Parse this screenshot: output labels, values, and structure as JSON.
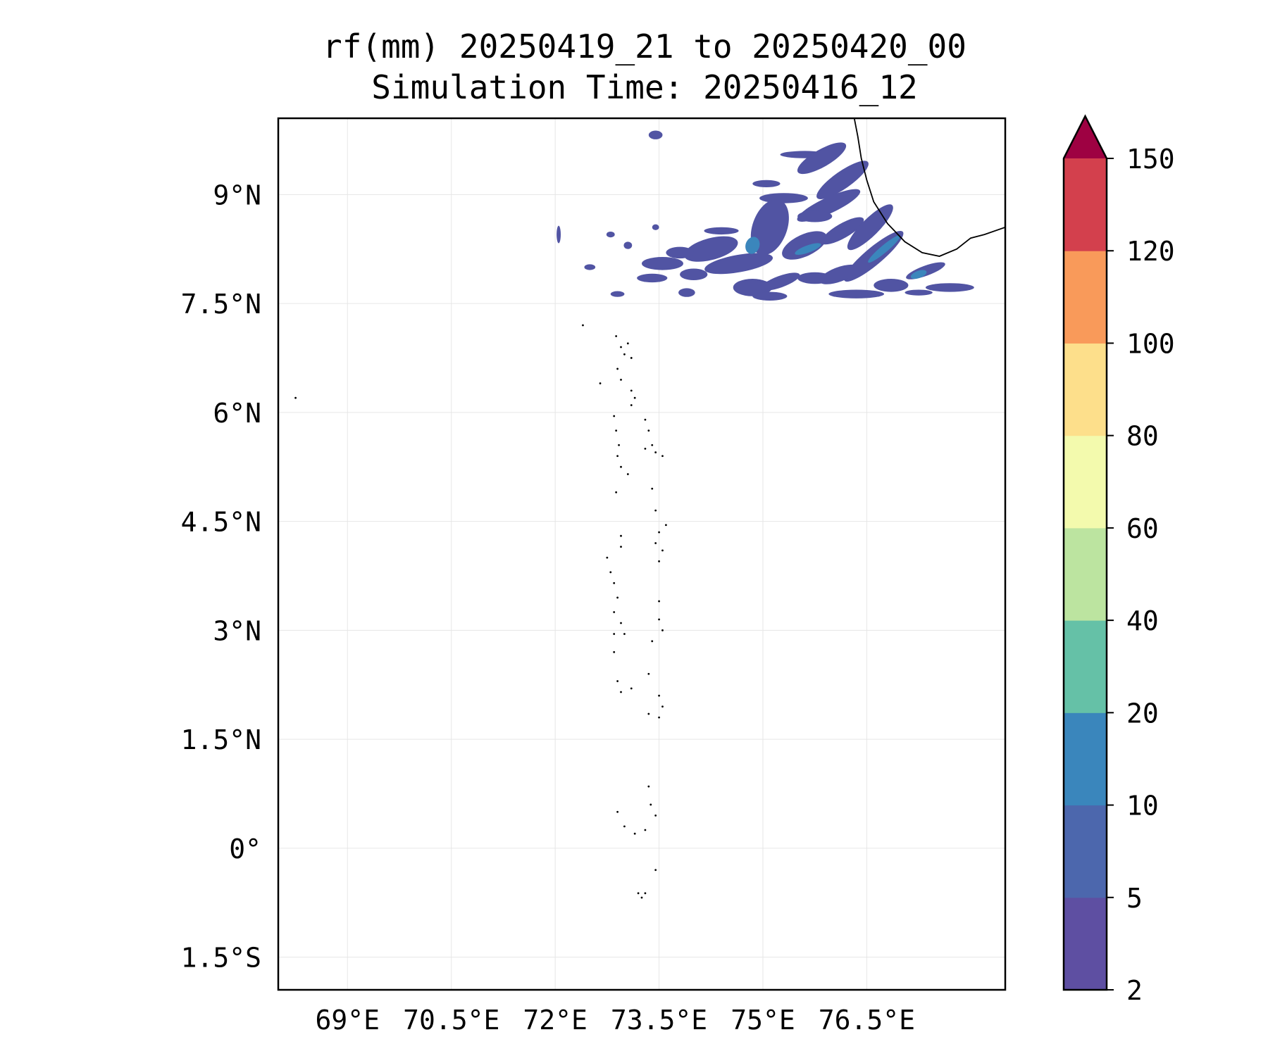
{
  "figure": {
    "title_line1": "rf(mm) 20250419_21 to 20250420_00",
    "title_line2": "Simulation Time: 20250416_12"
  },
  "map": {
    "lon_range": [
      68.0,
      78.5
    ],
    "lat_range": [
      -1.95,
      10.05
    ],
    "lon_ticks": [
      {
        "value": 69.0,
        "label": "69°E"
      },
      {
        "value": 70.5,
        "label": "70.5°E"
      },
      {
        "value": 72.0,
        "label": "72°E"
      },
      {
        "value": 73.5,
        "label": "73.5°E"
      },
      {
        "value": 75.0,
        "label": "75°E"
      },
      {
        "value": 76.5,
        "label": "76.5°E"
      }
    ],
    "lat_ticks": [
      {
        "value": 9.0,
        "label": "9°N"
      },
      {
        "value": 7.5,
        "label": "7.5°N"
      },
      {
        "value": 6.0,
        "label": "6°N"
      },
      {
        "value": 4.5,
        "label": "4.5°N"
      },
      {
        "value": 3.0,
        "label": "3°N"
      },
      {
        "value": 1.5,
        "label": "1.5°N"
      },
      {
        "value": 0.0,
        "label": "0°"
      },
      {
        "value": -1.5,
        "label": "1.5°S"
      }
    ],
    "gridlines": true,
    "coastline": [
      [
        76.32,
        10.05
      ],
      [
        76.37,
        9.8
      ],
      [
        76.42,
        9.5
      ],
      [
        76.5,
        9.2
      ],
      [
        76.6,
        8.9
      ],
      [
        76.8,
        8.6
      ],
      [
        77.05,
        8.35
      ],
      [
        77.3,
        8.2
      ],
      [
        77.55,
        8.15
      ],
      [
        77.8,
        8.25
      ],
      [
        78.0,
        8.4
      ],
      [
        78.2,
        8.45
      ],
      [
        78.5,
        8.55
      ]
    ],
    "islands": [
      [
        72.88,
        7.05
      ],
      [
        72.95,
        6.9
      ],
      [
        73.05,
        6.95
      ],
      [
        73.1,
        6.75
      ],
      [
        73.0,
        6.8
      ],
      [
        72.9,
        6.6
      ],
      [
        72.95,
        6.45
      ],
      [
        73.1,
        6.3
      ],
      [
        73.15,
        6.2
      ],
      [
        73.1,
        6.1
      ],
      [
        72.85,
        5.95
      ],
      [
        72.88,
        5.75
      ],
      [
        72.92,
        5.55
      ],
      [
        72.9,
        5.4
      ],
      [
        72.95,
        5.25
      ],
      [
        73.05,
        5.15
      ],
      [
        73.3,
        5.9
      ],
      [
        73.35,
        5.75
      ],
      [
        73.3,
        5.5
      ],
      [
        73.45,
        5.45
      ],
      [
        73.55,
        5.4
      ],
      [
        73.4,
        5.55
      ],
      [
        72.88,
        4.9
      ],
      [
        73.4,
        4.95
      ],
      [
        73.45,
        4.65
      ],
      [
        73.6,
        4.45
      ],
      [
        73.5,
        4.35
      ],
      [
        73.45,
        4.2
      ],
      [
        73.55,
        4.1
      ],
      [
        73.5,
        3.95
      ],
      [
        72.95,
        4.3
      ],
      [
        72.95,
        4.15
      ],
      [
        72.75,
        4.0
      ],
      [
        72.8,
        3.8
      ],
      [
        72.85,
        3.65
      ],
      [
        72.9,
        3.45
      ],
      [
        72.85,
        3.25
      ],
      [
        72.95,
        3.1
      ],
      [
        72.85,
        2.95
      ],
      [
        72.85,
        2.7
      ],
      [
        73.0,
        2.95
      ],
      [
        73.5,
        3.4
      ],
      [
        73.5,
        3.15
      ],
      [
        73.55,
        3.0
      ],
      [
        73.4,
        2.85
      ],
      [
        73.35,
        2.4
      ],
      [
        72.9,
        2.3
      ],
      [
        72.95,
        2.15
      ],
      [
        73.1,
        2.2
      ],
      [
        73.35,
        1.85
      ],
      [
        73.5,
        1.8
      ],
      [
        73.55,
        1.95
      ],
      [
        73.5,
        2.1
      ],
      [
        73.35,
        0.85
      ],
      [
        73.38,
        0.6
      ],
      [
        73.45,
        0.45
      ],
      [
        72.9,
        0.5
      ],
      [
        73.0,
        0.3
      ],
      [
        73.15,
        0.2
      ],
      [
        73.3,
        0.25
      ],
      [
        73.45,
        -0.3
      ],
      [
        73.2,
        -0.62
      ],
      [
        73.25,
        -0.68
      ],
      [
        73.3,
        -0.62
      ],
      [
        72.4,
        7.2
      ],
      [
        72.65,
        6.4
      ],
      [
        68.25,
        6.2
      ]
    ],
    "rain_patches_5_10": [
      [
        73.45,
        9.82,
        0.1,
        0.06,
        0
      ],
      [
        75.6,
        9.55,
        0.35,
        0.05,
        0
      ],
      [
        75.05,
        9.15,
        0.2,
        0.05,
        0
      ],
      [
        75.85,
        9.5,
        0.4,
        0.12,
        -30
      ],
      [
        76.15,
        9.2,
        0.45,
        0.12,
        -35
      ],
      [
        75.95,
        8.85,
        0.5,
        0.11,
        -25
      ],
      [
        75.3,
        8.95,
        0.35,
        0.07,
        0
      ],
      [
        75.1,
        8.55,
        0.25,
        0.4,
        20
      ],
      [
        75.75,
        8.7,
        0.25,
        0.08,
        0
      ],
      [
        76.15,
        8.5,
        0.35,
        0.1,
        -30
      ],
      [
        76.55,
        8.55,
        0.45,
        0.12,
        -45
      ],
      [
        76.6,
        8.15,
        0.55,
        0.12,
        -40
      ],
      [
        75.6,
        8.3,
        0.35,
        0.15,
        -25
      ],
      [
        74.4,
        8.5,
        0.25,
        0.05,
        0
      ],
      [
        74.25,
        8.25,
        0.4,
        0.15,
        -15
      ],
      [
        74.65,
        8.05,
        0.5,
        0.12,
        -10
      ],
      [
        73.8,
        8.2,
        0.2,
        0.08,
        0
      ],
      [
        73.55,
        8.05,
        0.3,
        0.09,
        0
      ],
      [
        73.4,
        7.85,
        0.22,
        0.06,
        0
      ],
      [
        74.0,
        7.9,
        0.2,
        0.08,
        0
      ],
      [
        73.9,
        7.65,
        0.12,
        0.06,
        0
      ],
      [
        74.85,
        7.72,
        0.28,
        0.12,
        0
      ],
      [
        75.1,
        7.6,
        0.25,
        0.06,
        0
      ],
      [
        75.25,
        7.8,
        0.3,
        0.08,
        -20
      ],
      [
        75.75,
        7.85,
        0.25,
        0.08,
        0
      ],
      [
        76.1,
        7.9,
        0.3,
        0.1,
        -20
      ],
      [
        76.35,
        7.63,
        0.4,
        0.06,
        0
      ],
      [
        76.85,
        7.75,
        0.25,
        0.09,
        0
      ],
      [
        77.35,
        7.95,
        0.3,
        0.07,
        -20
      ],
      [
        77.7,
        7.72,
        0.35,
        0.06,
        0
      ],
      [
        77.25,
        7.65,
        0.2,
        0.04,
        0
      ],
      [
        72.9,
        7.63,
        0.1,
        0.04,
        0
      ],
      [
        72.5,
        8.0,
        0.08,
        0.04,
        0
      ],
      [
        72.05,
        8.45,
        0.03,
        0.12,
        0
      ],
      [
        72.8,
        8.45,
        0.06,
        0.04,
        0
      ],
      [
        73.45,
        8.55,
        0.05,
        0.04,
        0
      ],
      [
        73.05,
        8.3,
        0.06,
        0.05,
        0
      ]
    ],
    "rain_patches_10_20": [
      [
        76.75,
        8.25,
        0.3,
        0.05,
        -40
      ],
      [
        75.65,
        8.25,
        0.2,
        0.05,
        -20
      ],
      [
        74.85,
        8.3,
        0.1,
        0.12,
        20
      ],
      [
        77.25,
        7.9,
        0.12,
        0.05,
        -20
      ]
    ]
  },
  "colorbar": {
    "boundaries": [
      2,
      5,
      10,
      20,
      40,
      60,
      80,
      100,
      120,
      150
    ],
    "tick_labels": [
      "2",
      "5",
      "10",
      "20",
      "40",
      "60",
      "80",
      "100",
      "120",
      "150"
    ],
    "colors": [
      "#5e4fa2",
      "#4c67ad",
      "#3a86bc",
      "#65c1a7",
      "#bce4a0",
      "#f3faad",
      "#fddf8b",
      "#f99a5a",
      "#d3404d"
    ],
    "extend_color": "#9e0142",
    "extend": "max"
  },
  "colors": {
    "rain_5_10": "#5154a3",
    "rain_10_20": "#3b86bc",
    "coastline": "#000000",
    "grid": "#e6e6e6"
  }
}
